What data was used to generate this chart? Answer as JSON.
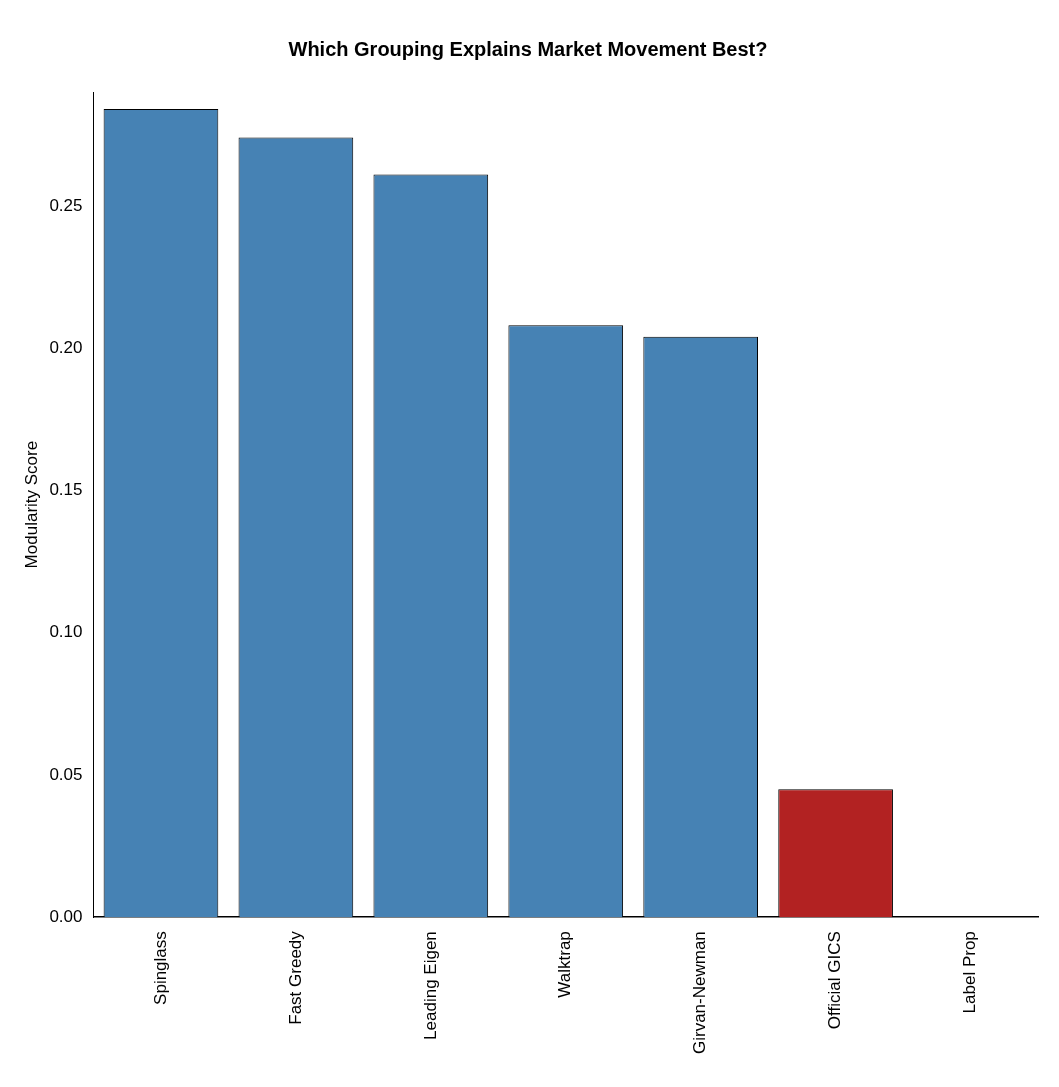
{
  "chart_data": {
    "type": "bar",
    "title": "Which Grouping Explains Market Movement Best?",
    "ylabel": "Modularity Score",
    "categories": [
      "Spinglass",
      "Fast Greedy",
      "Leading Eigen",
      "Walktrap",
      "Girvan-Newman",
      "Official GICS",
      "Label Prop"
    ],
    "values": [
      0.284,
      0.274,
      0.261,
      0.208,
      0.204,
      0.045,
      0
    ],
    "colors": [
      "#4682b4",
      "#4682b4",
      "#4682b4",
      "#4682b4",
      "#4682b4",
      "#b22222",
      "#4682b4"
    ],
    "ylim": [
      0,
      0.29
    ],
    "yticks": [
      {
        "value": 0,
        "label": "0.00"
      },
      {
        "value": 0.05,
        "label": "0.05"
      },
      {
        "value": 0.1,
        "label": "0.10"
      },
      {
        "value": 0.15,
        "label": "0.15"
      },
      {
        "value": 0.2,
        "label": "0.20"
      },
      {
        "value": 0.25,
        "label": "0.25"
      }
    ],
    "grid": false,
    "legend": false
  }
}
